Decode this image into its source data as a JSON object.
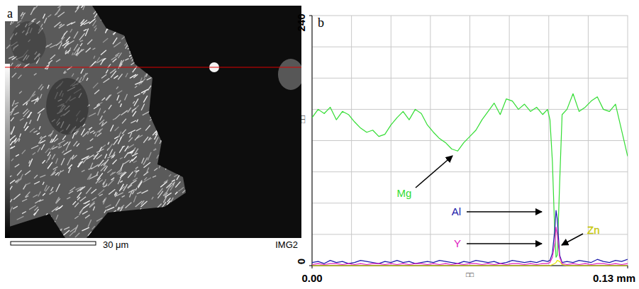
{
  "image_panel": {
    "label": "a",
    "scale_bar": "30 μm",
    "image_label": "IMG2"
  },
  "chart_data": {
    "type": "line",
    "panel_label": "b",
    "x_label": "□□",
    "y_label": "□□",
    "x": [
      0,
      0.0025,
      0.005,
      0.0075,
      0.01,
      0.0125,
      0.015,
      0.0175,
      0.02,
      0.0225,
      0.025,
      0.0275,
      0.03,
      0.0325,
      0.035,
      0.0375,
      0.04,
      0.0425,
      0.045,
      0.0475,
      0.05,
      0.0525,
      0.055,
      0.0575,
      0.06,
      0.0625,
      0.065,
      0.0675,
      0.07,
      0.0725,
      0.075,
      0.0775,
      0.08,
      0.0825,
      0.085,
      0.0875,
      0.09,
      0.0925,
      0.095,
      0.097,
      0.098,
      0.099,
      0.1,
      0.1005,
      0.101,
      0.102,
      0.103,
      0.105,
      0.1075,
      0.11,
      0.1125,
      0.115,
      0.1175,
      0.12,
      0.1225,
      0.125,
      0.1275,
      0.13
    ],
    "series": [
      {
        "name": "Mg",
        "color": "#33dd33",
        "values": [
          142,
          150,
          146,
          152,
          140,
          148,
          145,
          138,
          132,
          128,
          130,
          124,
          126,
          135,
          142,
          148,
          140,
          150,
          146,
          135,
          128,
          122,
          118,
          112,
          110,
          118,
          124,
          130,
          140,
          148,
          156,
          145,
          160,
          158,
          150,
          155,
          148,
          152,
          145,
          150,
          140,
          100,
          30,
          8,
          10,
          80,
          145,
          150,
          165,
          148,
          152,
          158,
          162,
          150,
          148,
          155,
          130,
          105
        ]
      },
      {
        "name": "Al",
        "color": "#1a1aaa",
        "values": [
          3,
          4,
          2,
          5,
          3,
          4,
          2,
          3,
          5,
          4,
          3,
          2,
          4,
          3,
          5,
          3,
          4,
          2,
          3,
          4,
          3,
          5,
          4,
          3,
          2,
          4,
          3,
          5,
          4,
          3,
          4,
          2,
          3,
          5,
          4,
          3,
          4,
          3,
          5,
          4,
          5,
          12,
          35,
          53,
          45,
          10,
          3,
          4,
          3,
          5,
          4,
          3,
          6,
          4,
          3,
          5,
          4,
          6
        ]
      },
      {
        "name": "Y",
        "color": "#e020c0",
        "values": [
          1,
          2,
          1,
          2,
          2,
          1,
          2,
          1,
          2,
          1,
          2,
          2,
          1,
          2,
          1,
          2,
          1,
          2,
          2,
          1,
          2,
          1,
          2,
          1,
          2,
          1,
          2,
          2,
          1,
          2,
          1,
          2,
          1,
          2,
          2,
          1,
          2,
          1,
          2,
          2,
          3,
          8,
          22,
          37,
          30,
          8,
          2,
          1,
          2,
          1,
          2,
          1,
          2,
          2,
          1,
          2,
          1,
          2
        ]
      },
      {
        "name": "Zn",
        "color": "#e6e600",
        "values": [
          0,
          0,
          0,
          0,
          0,
          0,
          0,
          0,
          0,
          0,
          0,
          0,
          0,
          0,
          0,
          0,
          0,
          0,
          0,
          0,
          0,
          0,
          0,
          0,
          0,
          0,
          0,
          0,
          0,
          0,
          0,
          0,
          0,
          0,
          0,
          0,
          0,
          0,
          0,
          0,
          0,
          1,
          2,
          3,
          5,
          4,
          1,
          0,
          0,
          0,
          0,
          0,
          0,
          0,
          0,
          0,
          0,
          0
        ]
      }
    ],
    "xlim": [
      0,
      0.13
    ],
    "ylim": [
      0,
      240
    ],
    "xticks": [
      {
        "value": 0,
        "label": "0.00"
      },
      {
        "value": 0.13,
        "label": "0.13 mm"
      }
    ],
    "yticks": [
      0,
      240
    ],
    "grid": true
  }
}
